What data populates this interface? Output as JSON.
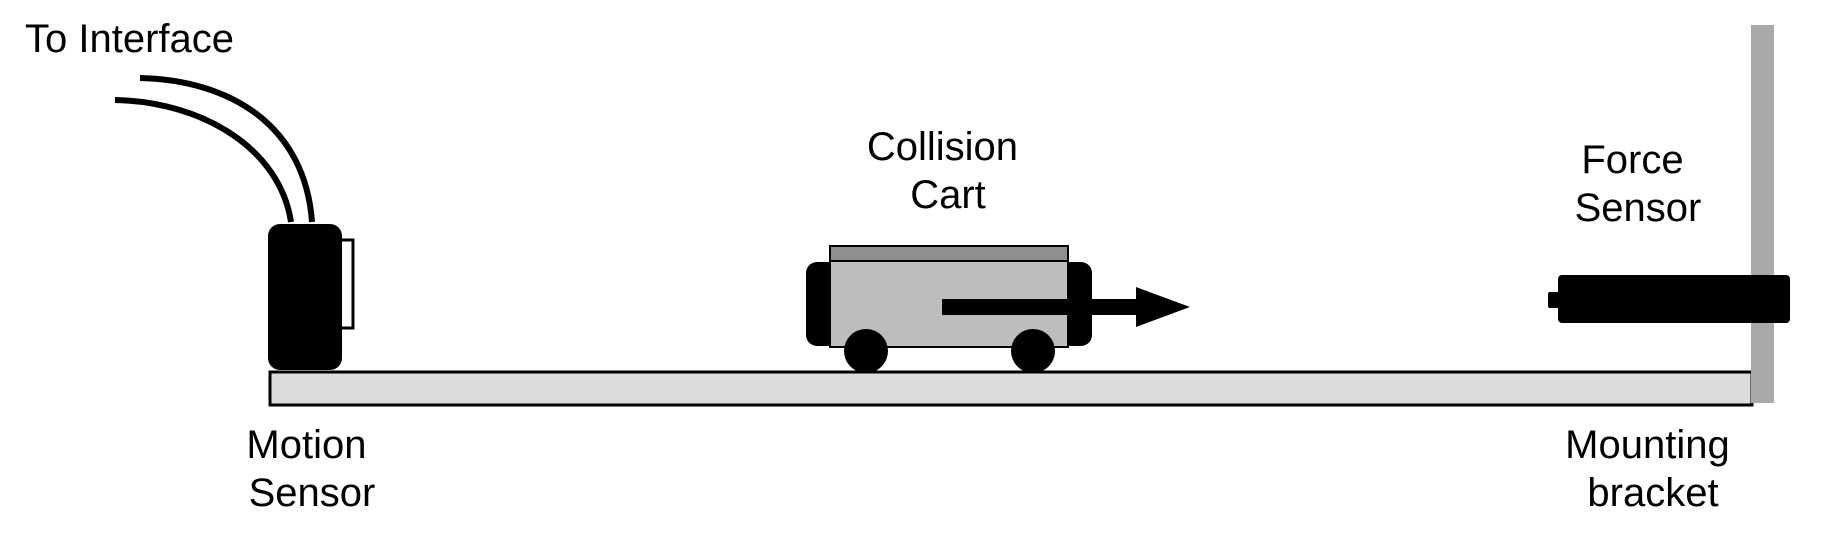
{
  "labels": {
    "to_interface": "To Interface",
    "collision_cart": [
      "Collision",
      "Cart"
    ],
    "force_sensor": [
      "Force",
      "Sensor"
    ],
    "motion_sensor": [
      "Motion",
      "Sensor"
    ],
    "mounting_bracket": [
      "Mounting",
      "bracket"
    ]
  },
  "colors": {
    "ink": "#000000",
    "track": "#dddddd",
    "cart_body": "#bdbdbd",
    "cart_top": "#8f8f8f",
    "bracket": "#a9a9a9",
    "background": "#ffffff"
  },
  "icons": {
    "motion_sensor": "motion-sensor-icon",
    "cart": "collision-cart-icon",
    "force_sensor": "force-sensor-icon",
    "direction": "arrow-right-icon"
  }
}
